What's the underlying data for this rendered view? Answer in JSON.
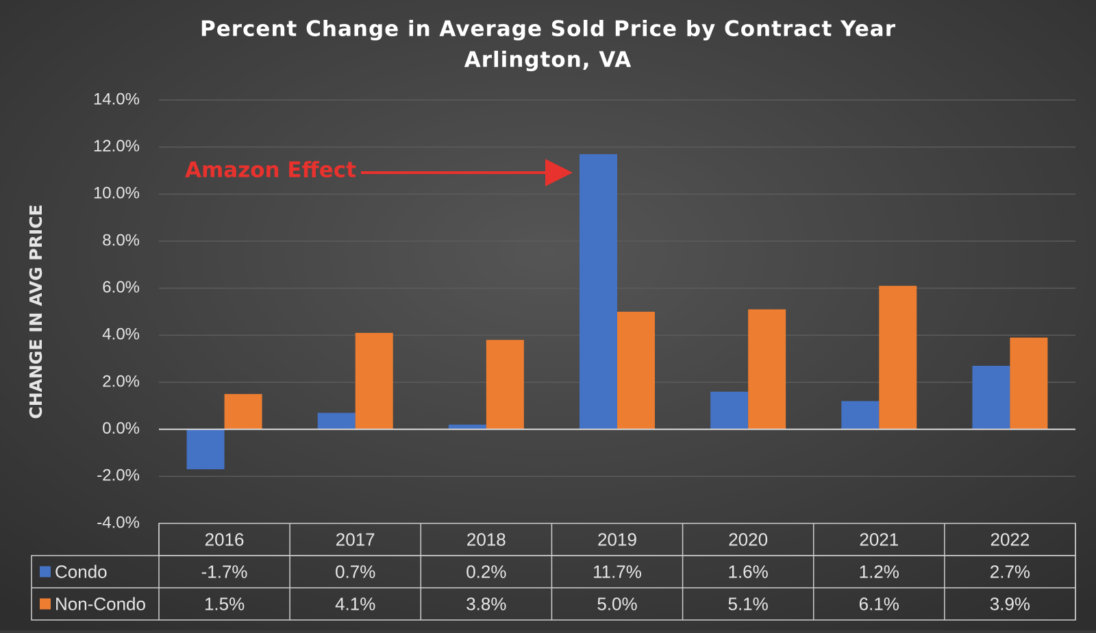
{
  "chart_data": {
    "type": "bar",
    "title": "Percent Change in Average Sold Price by Contract Year",
    "subtitle": "Arlington, VA",
    "y_label": "CHANGE IN AVG PRICE",
    "annotation": "Amazon Effect",
    "categories": [
      "2016",
      "2017",
      "2018",
      "2019",
      "2020",
      "2021",
      "2022"
    ],
    "series": [
      {
        "name": "Condo",
        "color": "#4472c4",
        "values": [
          -1.7,
          0.7,
          0.2,
          11.7,
          1.6,
          1.2,
          2.7
        ],
        "value_labels": [
          "-1.7%",
          "0.7%",
          "0.2%",
          "11.7%",
          "1.6%",
          "1.2%",
          "2.7%"
        ]
      },
      {
        "name": "Non-Condo",
        "color": "#ed7d31",
        "values": [
          1.5,
          4.1,
          3.8,
          5.0,
          5.1,
          6.1,
          3.9
        ],
        "value_labels": [
          "1.5%",
          "4.1%",
          "3.8%",
          "5.0%",
          "5.1%",
          "6.1%",
          "3.9%"
        ]
      }
    ],
    "ylim": [
      -4,
      14
    ],
    "yticks": [
      {
        "value": -4,
        "label": "-4.0%"
      },
      {
        "value": -2,
        "label": "-2.0%"
      },
      {
        "value": 0,
        "label": "0.0%"
      },
      {
        "value": 2,
        "label": "2.0%"
      },
      {
        "value": 4,
        "label": "4.0%"
      },
      {
        "value": 6,
        "label": "6.0%"
      },
      {
        "value": 8,
        "label": "8.0%"
      },
      {
        "value": 10,
        "label": "10.0%"
      },
      {
        "value": 12,
        "label": "12.0%"
      },
      {
        "value": 14,
        "label": "14.0%"
      }
    ],
    "grid": true
  }
}
